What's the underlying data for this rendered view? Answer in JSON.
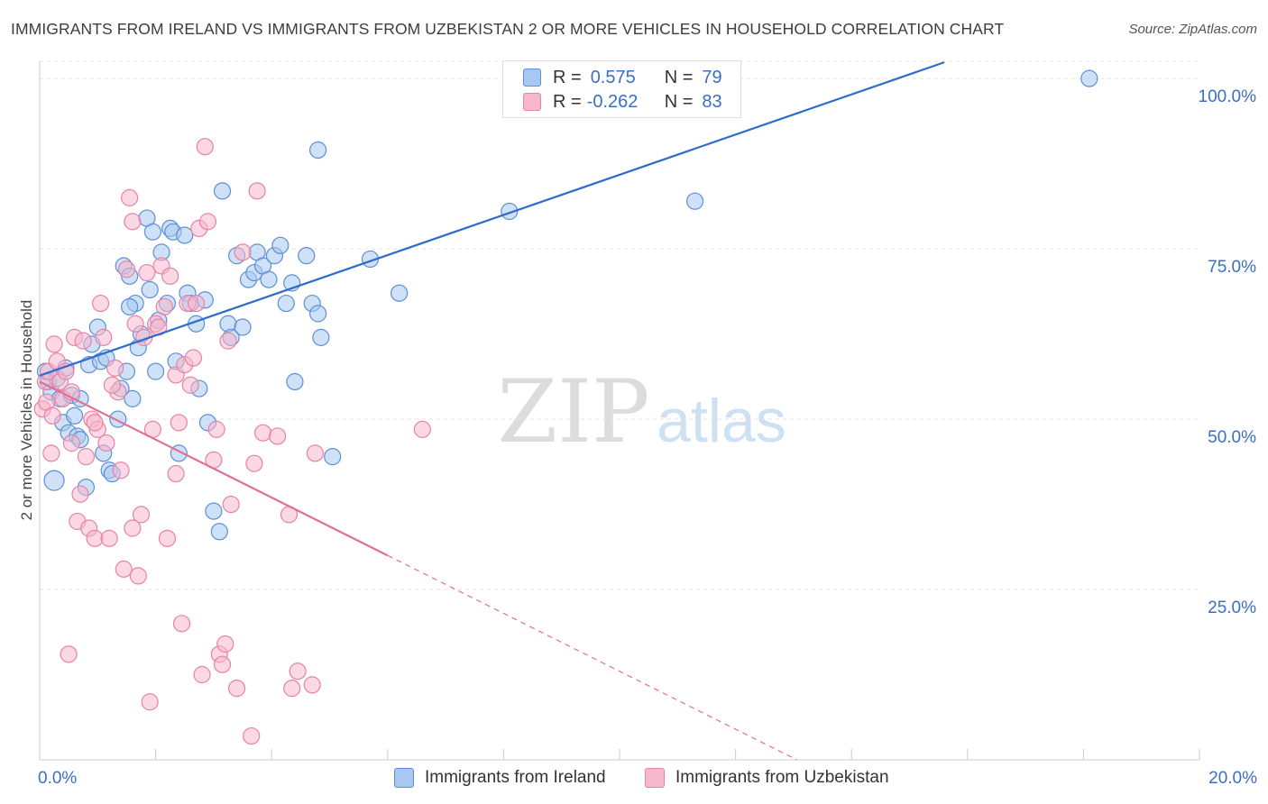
{
  "title": "IMMIGRANTS FROM IRELAND VS IMMIGRANTS FROM UZBEKISTAN 2 OR MORE VEHICLES IN HOUSEHOLD CORRELATION CHART",
  "source": "Source: ZipAtlas.com",
  "watermark": {
    "zip": "ZIP",
    "atlas": "atlas"
  },
  "legend": {
    "ireland": {
      "r_label": "R =",
      "r_value": "0.575",
      "n_label": "N =",
      "n_value": "79"
    },
    "uzbekistan": {
      "r_label": "R =",
      "r_value": "-0.262",
      "n_label": "N =",
      "n_value": "83"
    }
  },
  "colors": {
    "ireland_fill": "#a8c8f0",
    "ireland_stroke": "#5b8fd6",
    "ireland_line": "#2e6ccb",
    "uzbekistan_fill": "#f7b8cc",
    "uzbekistan_stroke": "#e882a6",
    "uzbekistan_line": "#e0709a",
    "grid": "#e3e3e3",
    "tick_label": "#3a6fc4"
  },
  "chart_data": {
    "type": "scatter",
    "title": "IMMIGRANTS FROM IRELAND VS IMMIGRANTS FROM UZBEKISTAN 2 OR MORE VEHICLES IN HOUSEHOLD CORRELATION CHART",
    "xlabel": "",
    "ylabel": "2 or more Vehicles in Household",
    "xlim": [
      0,
      20
    ],
    "ylim": [
      0,
      102
    ],
    "x_tick_labels": {
      "min": "0.0%",
      "max": "20.0%"
    },
    "y_ticks": [
      {
        "value": 25,
        "label": "25.0%"
      },
      {
        "value": 50,
        "label": "50.0%"
      },
      {
        "value": 75,
        "label": "75.0%"
      },
      {
        "value": 100,
        "label": "100.0%"
      }
    ],
    "grid": true,
    "legend_position": "top-center",
    "series": [
      {
        "name": "Immigrants from Ireland",
        "r": 0.575,
        "n": 79,
        "trend": {
          "x0": 0.0,
          "y0": 56.4,
          "x1": 15.6,
          "y1": 100.0,
          "dashed_to": 15.6
        },
        "points": [
          [
            0.1,
            57.0
          ],
          [
            0.15,
            55.5
          ],
          [
            0.2,
            54.0
          ],
          [
            0.25,
            41.0
          ],
          [
            0.3,
            56.0
          ],
          [
            0.35,
            53.0
          ],
          [
            0.4,
            49.5
          ],
          [
            0.45,
            57.5
          ],
          [
            0.5,
            48.0
          ],
          [
            0.55,
            53.5
          ],
          [
            0.6,
            50.5
          ],
          [
            0.65,
            47.5
          ],
          [
            0.7,
            47.0
          ],
          [
            0.8,
            40.0
          ],
          [
            0.85,
            58.0
          ],
          [
            0.9,
            61.0
          ],
          [
            1.0,
            63.5
          ],
          [
            1.05,
            58.5
          ],
          [
            1.1,
            45.0
          ],
          [
            1.15,
            59.0
          ],
          [
            1.2,
            42.5
          ],
          [
            1.25,
            42.0
          ],
          [
            1.35,
            50.0
          ],
          [
            1.4,
            54.5
          ],
          [
            1.45,
            72.5
          ],
          [
            1.5,
            57.0
          ],
          [
            1.55,
            71.0
          ],
          [
            1.6,
            53.0
          ],
          [
            1.65,
            67.0
          ],
          [
            1.7,
            60.5
          ],
          [
            1.75,
            62.5
          ],
          [
            1.85,
            79.5
          ],
          [
            1.9,
            69.0
          ],
          [
            1.95,
            77.5
          ],
          [
            2.0,
            57.0
          ],
          [
            2.05,
            64.5
          ],
          [
            2.1,
            74.5
          ],
          [
            2.2,
            67.0
          ],
          [
            2.25,
            78.0
          ],
          [
            2.3,
            77.5
          ],
          [
            2.35,
            58.5
          ],
          [
            2.4,
            45.0
          ],
          [
            2.5,
            77.0
          ],
          [
            2.55,
            68.5
          ],
          [
            2.6,
            67.0
          ],
          [
            2.7,
            64.0
          ],
          [
            2.75,
            54.5
          ],
          [
            2.85,
            67.5
          ],
          [
            2.9,
            49.5
          ],
          [
            3.0,
            36.5
          ],
          [
            3.1,
            33.5
          ],
          [
            3.15,
            83.5
          ],
          [
            3.25,
            64.0
          ],
          [
            3.3,
            62.0
          ],
          [
            3.4,
            74.0
          ],
          [
            3.5,
            63.5
          ],
          [
            3.6,
            70.5
          ],
          [
            3.7,
            71.5
          ],
          [
            3.75,
            74.5
          ],
          [
            3.85,
            72.5
          ],
          [
            3.95,
            70.5
          ],
          [
            4.05,
            74.0
          ],
          [
            4.15,
            75.5
          ],
          [
            4.25,
            67.0
          ],
          [
            4.35,
            70.0
          ],
          [
            4.4,
            55.5
          ],
          [
            4.6,
            74.0
          ],
          [
            4.7,
            67.0
          ],
          [
            4.8,
            65.5
          ],
          [
            4.85,
            62.0
          ],
          [
            4.8,
            89.5
          ],
          [
            5.05,
            44.5
          ],
          [
            5.7,
            73.5
          ],
          [
            6.2,
            68.5
          ],
          [
            8.1,
            80.5
          ],
          [
            11.3,
            82.0
          ],
          [
            18.1,
            100.0
          ],
          [
            0.7,
            53.0
          ],
          [
            1.55,
            66.5
          ]
        ]
      },
      {
        "name": "Immigrants from Uzbekistan",
        "r": -0.262,
        "n": 83,
        "trend": {
          "x0": 0.0,
          "y0": 55.5,
          "x1": 6.0,
          "y1": 30.0,
          "dashed_to": 20.0
        },
        "points": [
          [
            0.05,
            51.5
          ],
          [
            0.1,
            55.5
          ],
          [
            0.12,
            52.5
          ],
          [
            0.15,
            57.0
          ],
          [
            0.2,
            45.0
          ],
          [
            0.22,
            50.5
          ],
          [
            0.25,
            61.0
          ],
          [
            0.3,
            58.5
          ],
          [
            0.35,
            55.5
          ],
          [
            0.4,
            53.0
          ],
          [
            0.45,
            57.0
          ],
          [
            0.5,
            15.5
          ],
          [
            0.55,
            46.5
          ],
          [
            0.6,
            62.0
          ],
          [
            0.65,
            35.0
          ],
          [
            0.7,
            39.0
          ],
          [
            0.75,
            61.5
          ],
          [
            0.8,
            44.5
          ],
          [
            0.85,
            34.0
          ],
          [
            0.9,
            50.0
          ],
          [
            0.95,
            32.5
          ],
          [
            1.0,
            48.5
          ],
          [
            1.05,
            67.0
          ],
          [
            1.1,
            62.0
          ],
          [
            1.15,
            46.5
          ],
          [
            1.2,
            32.5
          ],
          [
            1.3,
            57.5
          ],
          [
            1.35,
            54.0
          ],
          [
            1.4,
            42.5
          ],
          [
            1.45,
            28.0
          ],
          [
            1.5,
            72.0
          ],
          [
            1.55,
            82.5
          ],
          [
            1.6,
            79.0
          ],
          [
            1.65,
            64.0
          ],
          [
            1.7,
            27.0
          ],
          [
            1.75,
            36.0
          ],
          [
            1.8,
            62.0
          ],
          [
            1.9,
            8.5
          ],
          [
            1.95,
            48.5
          ],
          [
            2.0,
            64.0
          ],
          [
            2.05,
            63.5
          ],
          [
            2.1,
            72.5
          ],
          [
            2.15,
            66.5
          ],
          [
            2.2,
            32.5
          ],
          [
            2.25,
            71.0
          ],
          [
            2.35,
            56.5
          ],
          [
            2.4,
            49.5
          ],
          [
            2.45,
            20.0
          ],
          [
            2.5,
            58.0
          ],
          [
            2.55,
            67.0
          ],
          [
            2.6,
            55.0
          ],
          [
            2.7,
            67.0
          ],
          [
            2.75,
            78.0
          ],
          [
            2.8,
            12.5
          ],
          [
            2.85,
            90.0
          ],
          [
            2.9,
            79.0
          ],
          [
            3.0,
            44.0
          ],
          [
            3.05,
            48.5
          ],
          [
            3.1,
            15.5
          ],
          [
            3.15,
            14.0
          ],
          [
            3.2,
            17.0
          ],
          [
            3.25,
            61.5
          ],
          [
            3.3,
            37.5
          ],
          [
            3.4,
            10.5
          ],
          [
            3.5,
            74.5
          ],
          [
            3.65,
            3.5
          ],
          [
            3.7,
            43.5
          ],
          [
            3.75,
            83.5
          ],
          [
            3.85,
            48.0
          ],
          [
            4.1,
            47.5
          ],
          [
            4.3,
            36.0
          ],
          [
            4.35,
            10.5
          ],
          [
            4.45,
            13.0
          ],
          [
            4.7,
            11.0
          ],
          [
            4.75,
            45.0
          ],
          [
            6.6,
            48.5
          ],
          [
            1.6,
            34.0
          ],
          [
            0.55,
            54.0
          ],
          [
            2.35,
            42.0
          ],
          [
            1.25,
            55.0
          ],
          [
            0.95,
            49.5
          ],
          [
            2.65,
            59.0
          ],
          [
            1.85,
            71.5
          ]
        ]
      }
    ]
  },
  "bottom_legend": {
    "ireland": "Immigrants from Ireland",
    "uzbekistan": "Immigrants from Uzbekistan"
  }
}
